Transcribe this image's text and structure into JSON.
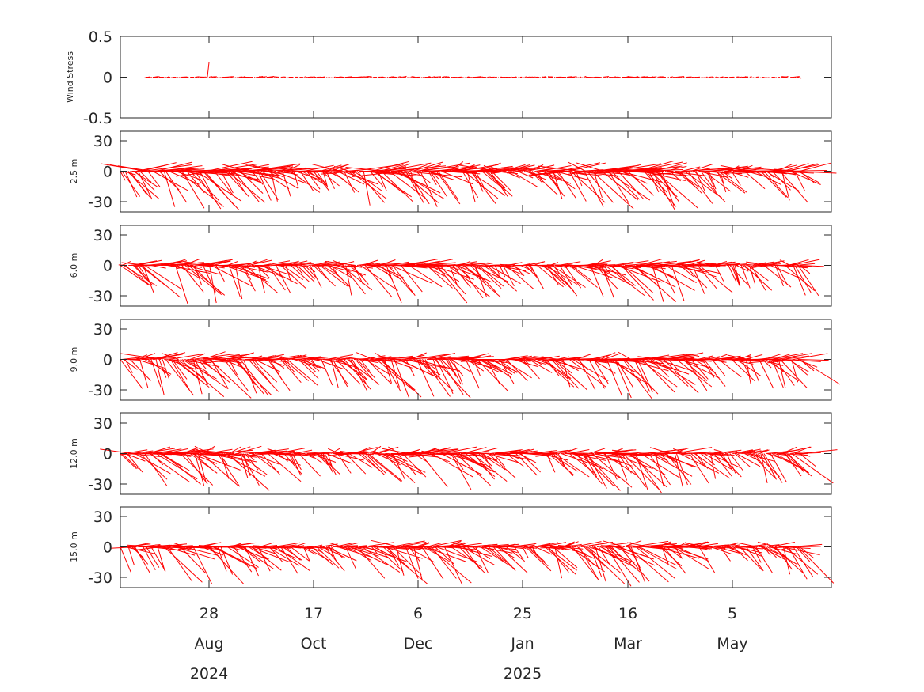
{
  "chart_data": [
    {
      "type": "line",
      "ylabel": "Wind Stress",
      "ylim": [
        -0.5,
        0.5
      ],
      "yticks": [
        "0.5",
        "0",
        "-0.5"
      ],
      "color": "#ff0000",
      "series": [
        {
          "amp_positive": 0.03,
          "amp_negative": 0.015,
          "spike_positive": 0.18,
          "start_mag": 0.02,
          "end_mag": 0.02
        }
      ]
    },
    {
      "type": "line",
      "ylabel": "2.5 m",
      "ylim": [
        -40,
        40
      ],
      "yticks": [
        "30",
        "0",
        "-30"
      ],
      "color": "#ff0000",
      "series": [
        {
          "amp_positive": 16,
          "amp_negative": 36,
          "spike_positive": 22,
          "start_mag": 10,
          "end_mag": 14
        }
      ]
    },
    {
      "type": "line",
      "ylabel": "6.0 m",
      "ylim": [
        -40,
        40
      ],
      "yticks": [
        "30",
        "0",
        "-30"
      ],
      "color": "#ff0000",
      "series": [
        {
          "amp_positive": 10,
          "amp_negative": 36,
          "spike_positive": 12,
          "start_mag": 8,
          "end_mag": 10
        }
      ]
    },
    {
      "type": "line",
      "ylabel": "9.0 m",
      "ylim": [
        -40,
        40
      ],
      "yticks": [
        "30",
        "0",
        "-30"
      ],
      "color": "#ff0000",
      "series": [
        {
          "amp_positive": 12,
          "amp_negative": 36,
          "spike_positive": 14,
          "start_mag": 8,
          "end_mag": 14
        }
      ]
    },
    {
      "type": "line",
      "ylabel": "12.0 m",
      "ylim": [
        -40,
        40
      ],
      "yticks": [
        "30",
        "0",
        "-30"
      ],
      "color": "#ff0000",
      "series": [
        {
          "amp_positive": 12,
          "amp_negative": 36,
          "spike_positive": 14,
          "start_mag": 8,
          "end_mag": 16
        }
      ]
    },
    {
      "type": "line",
      "ylabel": "15.0 m",
      "ylim": [
        -40,
        40
      ],
      "yticks": [
        "30",
        "0",
        "-30"
      ],
      "color": "#ff0000",
      "series": [
        {
          "amp_positive": 10,
          "amp_negative": 36,
          "spike_positive": 10,
          "start_mag": 7,
          "end_mag": 14
        }
      ]
    }
  ],
  "x_axis": {
    "ticks": [
      {
        "day": "28",
        "month": "Aug"
      },
      {
        "day": "17",
        "month": "Oct"
      },
      {
        "day": "6",
        "month": "Dec"
      },
      {
        "day": "25",
        "month": "Jan"
      },
      {
        "day": "16",
        "month": "Mar"
      },
      {
        "day": "5",
        "month": "May"
      }
    ],
    "years": [
      {
        "label": "2024",
        "under_tick": 0
      },
      {
        "label": "2025",
        "under_tick": 3
      }
    ]
  }
}
